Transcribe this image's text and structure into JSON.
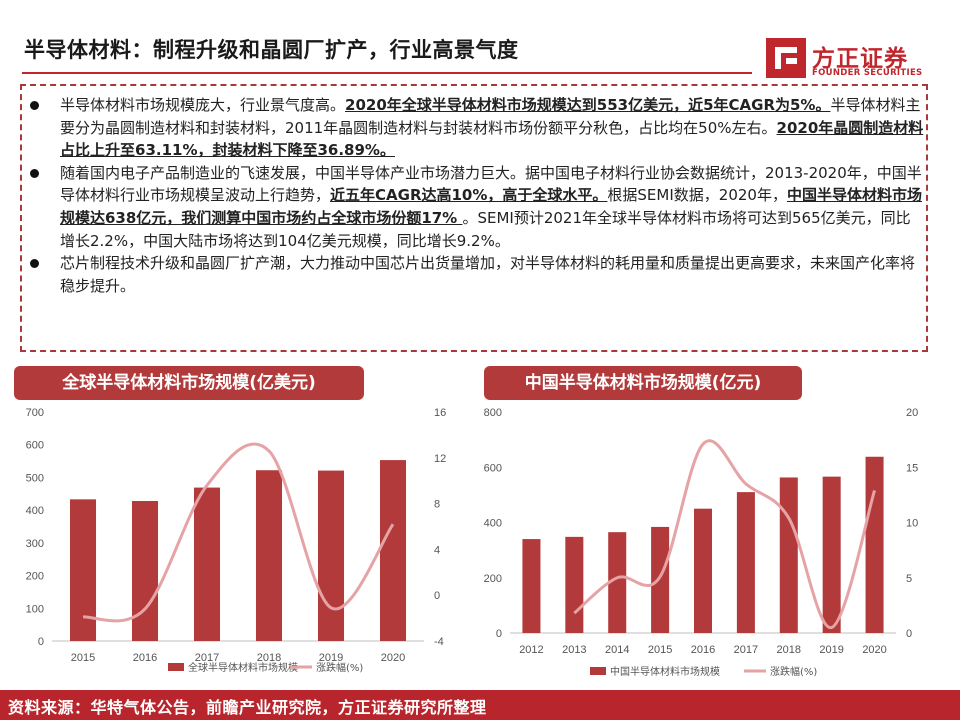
{
  "header": {
    "title": "半导体材料：制程升级和晶圆厂扩产，行业高景气度"
  },
  "logo": {
    "name": "方正证券",
    "subtitle": "FOUNDER SECURITIES",
    "brand_color": "#c0272d"
  },
  "bullets": [
    [
      {
        "t": "半导体材料市场规模庞大，行业景气度高。",
        "b": false
      },
      {
        "t": "2020年全球半导体材料市场规模达到553亿美元，近5年CAGR为5%。",
        "b": true
      },
      {
        "t": "半导体材料主要分为晶圆制造材料和封装材料，2011年晶圆制造材料与封装材料市场份额平分秋色，占比均在50%左右。",
        "b": false
      },
      {
        "t": "2020年晶圆制造材料占比上升至63.11%，封装材料下降至36.89%。",
        "b": true
      }
    ],
    [
      {
        "t": "随着国内电子产品制造业的飞速发展，中国半导体产业市场潜力巨大。据中国电子材料行业协会数据统计，2013-2020年，中国半导体材料行业市场规模呈波动上行趋势，",
        "b": false
      },
      {
        "t": "近五年CAGR达高10%，高于全球水平。",
        "b": true
      },
      {
        "t": "根据SEMI数据，2020年，",
        "b": false
      },
      {
        "t": "中国半导体材料市场规模达638亿元，我们测算中国市场约占全球市场份额17% ",
        "b": true
      },
      {
        "t": "。SEMI预计2021年全球半导体材料市场将可达到565亿美元，同比增长2.2%，中国大陆市场将达到104亿美元规模，同比增长9.2%。",
        "b": false
      }
    ],
    [
      {
        "t": "芯片制程技术升级和晶圆厂扩产潮，大力推动中国芯片出货量增加，对半导体材料的耗用量和质量提出更高要求，未来国产化率将稳步提升。",
        "b": false
      }
    ]
  ],
  "chart_data": [
    {
      "type": "bar+line",
      "title": "全球半导体材料市场规模(亿美元)",
      "categories": [
        "2015",
        "2016",
        "2017",
        "2018",
        "2019",
        "2020"
      ],
      "series": [
        {
          "name": "全球半导体材料市场规模",
          "type": "bar",
          "axis": "left",
          "values": [
            433,
            428,
            469,
            522,
            521,
            553
          ]
        },
        {
          "name": "涨跌幅(%)",
          "type": "line",
          "axis": "right",
          "values": [
            -1.9,
            -1.2,
            9.6,
            12.6,
            -1.1,
            6.2
          ]
        }
      ],
      "ylim_left": [
        0,
        700
      ],
      "yticks_left": [
        0,
        100,
        200,
        300,
        400,
        500,
        600,
        700
      ],
      "ylim_right": [
        -4,
        16
      ],
      "yticks_right": [
        -4,
        0,
        4,
        8,
        12,
        16
      ],
      "colors": {
        "bar": "#b23a3b",
        "line": "#e6a3a6"
      },
      "legend": "bottom"
    },
    {
      "type": "bar+line",
      "title": "中国半导体材料市场规模(亿元)",
      "categories": [
        "2012",
        "2013",
        "2014",
        "2015",
        "2016",
        "2017",
        "2018",
        "2019",
        "2020"
      ],
      "series": [
        {
          "name": "中国半导体材料市场规模",
          "type": "bar",
          "axis": "left",
          "values": [
            340,
            348,
            365,
            384,
            450,
            510,
            563,
            566,
            638
          ]
        },
        {
          "name": "涨跌幅(%)",
          "type": "line",
          "axis": "right",
          "values": [
            null,
            1.8,
            5.0,
            5.1,
            17.1,
            13.5,
            10.4,
            0.5,
            12.9
          ]
        }
      ],
      "ylim_left": [
        0,
        800
      ],
      "yticks_left": [
        0,
        200,
        400,
        600,
        800
      ],
      "ylim_right": [
        0,
        20
      ],
      "yticks_right": [
        0,
        5,
        10,
        15,
        20
      ],
      "colors": {
        "bar": "#b23a3b",
        "line": "#e6a3a6"
      },
      "legend": "bottom"
    }
  ],
  "footer": {
    "source": "资料来源：华特气体公告，前瞻产业研究院，方正证券研究所整理"
  }
}
